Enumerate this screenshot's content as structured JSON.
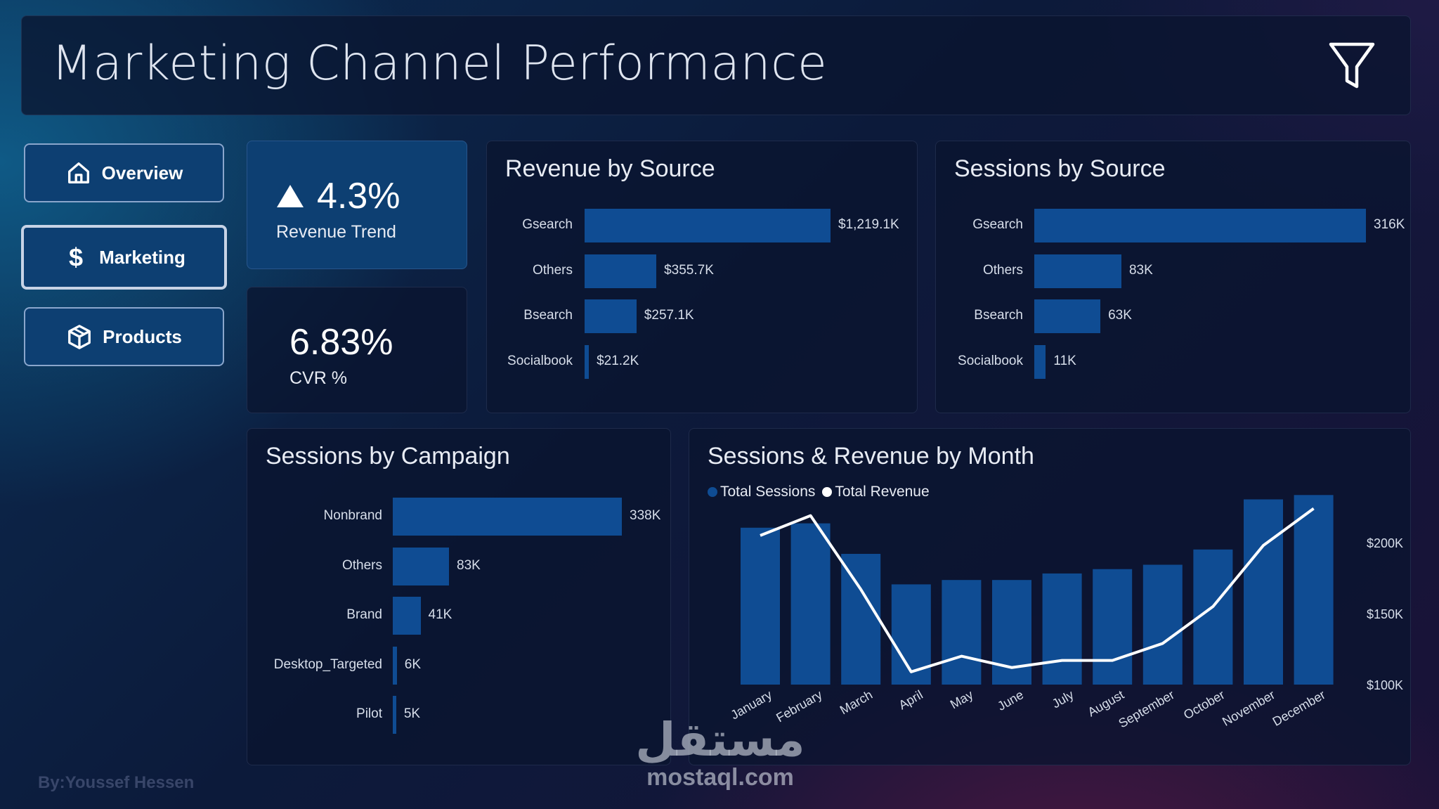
{
  "header": {
    "title": "Marketing Channel Performance",
    "filter_icon": "filter-icon"
  },
  "nav": {
    "items": [
      {
        "label": "Overview",
        "icon": "home-icon",
        "active": false
      },
      {
        "label": "Marketing",
        "icon": "dollar-icon",
        "active": true
      },
      {
        "label": "Products",
        "icon": "box-icon",
        "active": false
      }
    ]
  },
  "kpis": {
    "revenue_trend": {
      "value": "4.3%",
      "label": "Revenue Trend",
      "direction": "up"
    },
    "cvr": {
      "value": "6.83%",
      "label": "CVR %"
    }
  },
  "colors": {
    "bar": "#0f4c93",
    "line": "#ffffff",
    "kpi_highlight": "#0d3f72"
  },
  "chart_data": [
    {
      "type": "bar",
      "orientation": "horizontal",
      "title": "Revenue by Source",
      "categories": [
        "Gsearch",
        "Others",
        "Bsearch",
        "Socialbook"
      ],
      "values": [
        1219.1,
        355.7,
        257.1,
        21.2
      ],
      "value_labels": [
        "$1,219.1K",
        "$355.7K",
        "$257.1K",
        "$21.2K"
      ]
    },
    {
      "type": "bar",
      "orientation": "horizontal",
      "title": "Sessions by Source",
      "categories": [
        "Gsearch",
        "Others",
        "Bsearch",
        "Socialbook"
      ],
      "values": [
        316,
        83,
        63,
        11
      ],
      "value_labels": [
        "316K",
        "83K",
        "63K",
        "11K"
      ]
    },
    {
      "type": "bar",
      "orientation": "horizontal",
      "title": "Sessions by Campaign",
      "categories": [
        "Nonbrand",
        "Others",
        "Brand",
        "Desktop_Targeted",
        "Pilot"
      ],
      "values": [
        338,
        83,
        41,
        6,
        5
      ],
      "value_labels": [
        "338K",
        "83K",
        "41K",
        "6K",
        "5K"
      ]
    },
    {
      "type": "bar+line",
      "title": "Sessions & Revenue by Month",
      "categories": [
        "January",
        "February",
        "March",
        "April",
        "May",
        "June",
        "July",
        "August",
        "September",
        "October",
        "November",
        "December"
      ],
      "series": [
        {
          "name": "Total Sessions",
          "type": "bar",
          "values": [
            36,
            37,
            30,
            23,
            24,
            24,
            25.5,
            26.5,
            27.5,
            31,
            42.5,
            43.5
          ]
        },
        {
          "name": "Total Revenue",
          "type": "line",
          "values": [
            205,
            219,
            167,
            109,
            120,
            112,
            117,
            117,
            129,
            155,
            198,
            224
          ]
        }
      ],
      "y2_ticks": [
        "$100K",
        "$150K",
        "$200K"
      ],
      "y2_tick_values": [
        100,
        150,
        200
      ],
      "legend": "top-left"
    }
  ],
  "watermarks": {
    "author": "By:Youssef Hessen",
    "brand_ar": "مستقل",
    "brand_en": "mostaql.com"
  }
}
